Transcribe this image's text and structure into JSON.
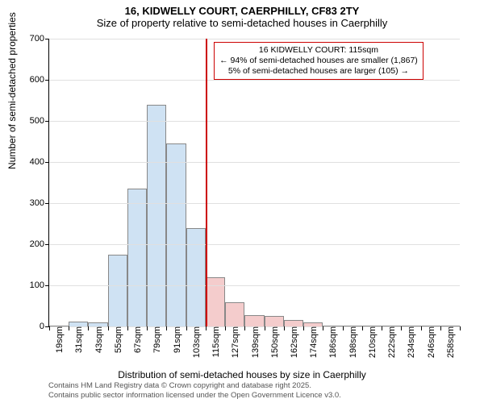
{
  "header": {
    "line1": "16, KIDWELLY COURT, CAERPHILLY, CF83 2TY",
    "line2": "Size of property relative to semi-detached houses in Caerphilly"
  },
  "chart": {
    "type": "histogram",
    "xaxis_title": "Distribution of semi-detached houses by size in Caerphilly",
    "yaxis_title": "Number of semi-detached properties",
    "ylim": [
      0,
      700
    ],
    "ytick_step": 100,
    "yticks": [
      0,
      100,
      200,
      300,
      400,
      500,
      600,
      700
    ],
    "xticks": [
      "19sqm",
      "31sqm",
      "43sqm",
      "55sqm",
      "67sqm",
      "79sqm",
      "91sqm",
      "103sqm",
      "115sqm",
      "127sqm",
      "139sqm",
      "150sqm",
      "162sqm",
      "174sqm",
      "186sqm",
      "198sqm",
      "210sqm",
      "222sqm",
      "234sqm",
      "246sqm",
      "258sqm"
    ],
    "bars": [
      {
        "x": "19sqm",
        "value": 2
      },
      {
        "x": "31sqm",
        "value": 12
      },
      {
        "x": "43sqm",
        "value": 10
      },
      {
        "x": "55sqm",
        "value": 175
      },
      {
        "x": "67sqm",
        "value": 335
      },
      {
        "x": "79sqm",
        "value": 540
      },
      {
        "x": "91sqm",
        "value": 445
      },
      {
        "x": "103sqm",
        "value": 240
      },
      {
        "x": "115sqm",
        "value": 120
      },
      {
        "x": "127sqm",
        "value": 58
      },
      {
        "x": "139sqm",
        "value": 28
      },
      {
        "x": "150sqm",
        "value": 25
      },
      {
        "x": "162sqm",
        "value": 15
      },
      {
        "x": "174sqm",
        "value": 10
      },
      {
        "x": "186sqm",
        "value": 2
      },
      {
        "x": "198sqm",
        "value": 1
      },
      {
        "x": "210sqm",
        "value": 0
      },
      {
        "x": "222sqm",
        "value": 1
      },
      {
        "x": "234sqm",
        "value": 0
      },
      {
        "x": "246sqm",
        "value": 0
      },
      {
        "x": "258sqm",
        "value": 0
      }
    ],
    "marker": {
      "at_index": 8,
      "color": "#cc0000"
    },
    "bar_color_left": "#cfe2f3",
    "bar_color_right": "#f4cccc",
    "bar_border": "#888888",
    "background_color": "#ffffff",
    "grid_color": "#e0e0e0",
    "axis_fontsize": 11
  },
  "callout": {
    "line1": "16 KIDWELLY COURT: 115sqm",
    "line2": "← 94% of semi-detached houses are smaller (1,867)",
    "line3": "5% of semi-detached houses are larger (105) →"
  },
  "footer": {
    "line1": "Contains HM Land Registry data © Crown copyright and database right 2025.",
    "line2": "Contains public sector information licensed under the Open Government Licence v3.0."
  }
}
